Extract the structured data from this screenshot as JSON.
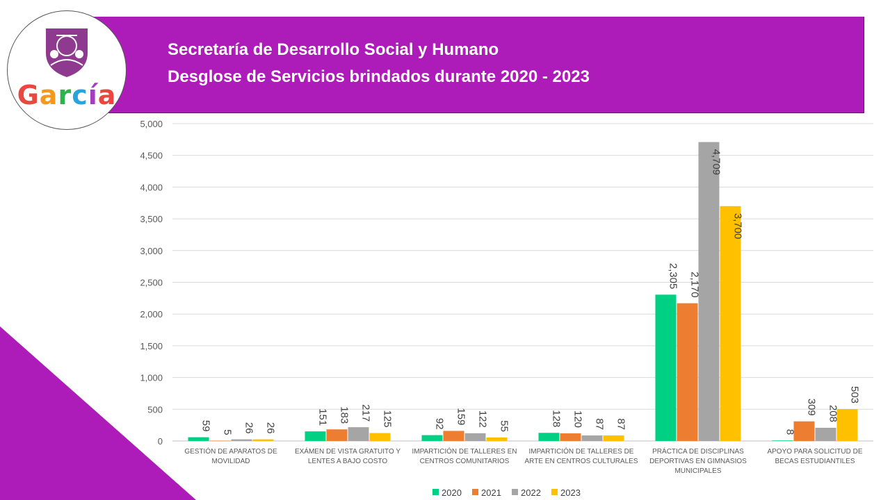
{
  "header": {
    "title_line1": "Secretaría de Desarrollo Social y Humano",
    "title_line2": "Desglose de Servicios brindados durante 2020 - 2023"
  },
  "logo": {
    "wordmark": "García",
    "letters": [
      {
        "char": "G",
        "color": "#e8483f"
      },
      {
        "char": "a",
        "color": "#f39a1e"
      },
      {
        "char": "r",
        "color": "#2fb24c"
      },
      {
        "char": "c",
        "color": "#29a3dc"
      },
      {
        "char": "í",
        "color": "#a23cc0"
      },
      {
        "char": "a",
        "color": "#e8483f"
      }
    ],
    "shield_color": "#8e3a8e"
  },
  "colors": {
    "header_band": "#ad1cb8",
    "corner_triangle": "#ad1cb8"
  },
  "chart_data": {
    "type": "bar",
    "title": "",
    "xlabel": "",
    "ylabel": "",
    "ylim": [
      0,
      5000
    ],
    "yticks": [
      0,
      500,
      1000,
      1500,
      2000,
      2500,
      3000,
      3500,
      4000,
      4500,
      5000
    ],
    "ytick_labels": [
      "0",
      "500",
      "1,000",
      "1,500",
      "2,000",
      "2,500",
      "3,000",
      "3,500",
      "4,000",
      "4,500",
      "5,000"
    ],
    "grid": true,
    "legend_position": "bottom",
    "categories": [
      [
        "GESTIÓN DE APARATOS DE",
        "MOVILIDAD"
      ],
      [
        "EXÁMEN DE VISTA GRATUITO Y",
        "LENTES A BAJO COSTO"
      ],
      [
        "IMPARTICIÓN DE TALLERES EN",
        "CENTROS COMUNITARIOS"
      ],
      [
        "IMPARTICIÓN DE TALLERES DE",
        "ARTE EN CENTROS CULTURALES"
      ],
      [
        "PRÁCTICA DE DISCIPLINAS",
        "DEPORTIVAS EN GIMNASIOS",
        "MUNICIPALES"
      ],
      [
        "APOYO PARA SOLICITUD DE",
        "BECAS ESTUDIANTILES"
      ]
    ],
    "series": [
      {
        "name": "2020",
        "color": "#00d084",
        "values": [
          59,
          151,
          92,
          128,
          2305,
          8
        ],
        "labels": [
          "59",
          "151",
          "92",
          "128",
          "2,305",
          "8"
        ]
      },
      {
        "name": "2021",
        "color": "#ed7d31",
        "values": [
          5,
          183,
          159,
          120,
          2170,
          309
        ],
        "labels": [
          "5",
          "183",
          "159",
          "120",
          "2,170",
          "309"
        ]
      },
      {
        "name": "2022",
        "color": "#a5a5a5",
        "values": [
          26,
          217,
          122,
          87,
          4709,
          208
        ],
        "labels": [
          "26",
          "217",
          "122",
          "87",
          "4,709",
          "208"
        ]
      },
      {
        "name": "2023",
        "color": "#ffc000",
        "values": [
          26,
          125,
          55,
          87,
          3700,
          503
        ],
        "labels": [
          "26",
          "125",
          "55",
          "87",
          "3,700",
          "503"
        ]
      }
    ]
  }
}
